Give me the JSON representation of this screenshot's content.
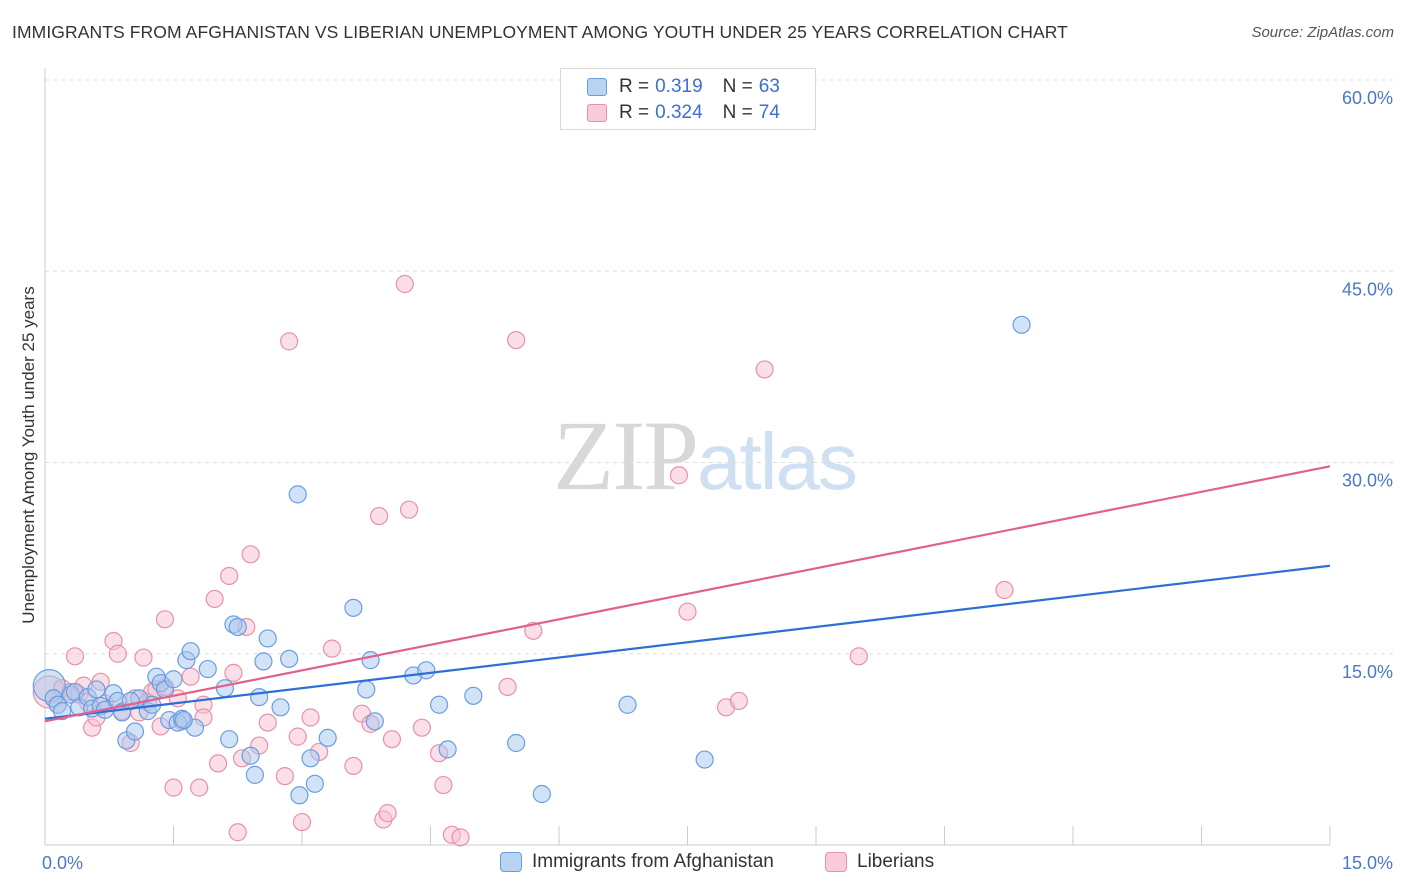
{
  "header": {
    "title": "IMMIGRANTS FROM AFGHANISTAN VS LIBERIAN UNEMPLOYMENT AMONG YOUTH UNDER 25 YEARS CORRELATION CHART",
    "source": "Source: ZipAtlas.com"
  },
  "watermark": {
    "zip": "ZIP",
    "atlas": "atlas"
  },
  "legend": {
    "blue": {
      "r_label": "R =",
      "r_value": "0.319",
      "n_label": "N =",
      "n_value": "63"
    },
    "pink": {
      "r_label": "R =",
      "r_value": "0.324",
      "n_label": "N =",
      "n_value": "74"
    }
  },
  "bottom_legend": {
    "blue_label": "Immigrants from Afghanistan",
    "pink_label": "Liberians"
  },
  "colors": {
    "blue_fill": "#a8c8f0",
    "blue_stroke": "#6a9de0",
    "blue_line": "#2e6fd6",
    "pink_fill": "#f6bfd0",
    "pink_stroke": "#e890ad",
    "pink_line": "#e0628c",
    "tick_text": "#4a78c8",
    "grid": "#dddddd"
  },
  "chart_data": {
    "type": "scatter",
    "title": "IMMIGRANTS FROM AFGHANISTAN VS LIBERIAN UNEMPLOYMENT AMONG YOUTH UNDER 25 YEARS CORRELATION CHART",
    "xlabel": "",
    "ylabel": "Unemployment Among Youth under 25 years",
    "xlim": [
      0,
      15
    ],
    "ylim": [
      0,
      60
    ],
    "x_tick_labels": [
      "0.0%",
      "15.0%"
    ],
    "y_ticks": [
      15,
      30,
      45,
      60
    ],
    "y_tick_labels": [
      "15.0%",
      "30.0%",
      "45.0%",
      "60.0%"
    ],
    "series": [
      {
        "name": "Immigrants from Afghanistan",
        "color": "blue",
        "trend": {
          "x": [
            0,
            15
          ],
          "y": [
            9.9,
            21.9
          ]
        },
        "points": [
          [
            0.05,
            12.5
          ],
          [
            0.1,
            11.5
          ],
          [
            0.15,
            11.0
          ],
          [
            0.2,
            10.5
          ],
          [
            0.3,
            11.8
          ],
          [
            0.35,
            12.0
          ],
          [
            0.4,
            10.8
          ],
          [
            0.5,
            11.6
          ],
          [
            0.55,
            10.7
          ],
          [
            0.6,
            12.2
          ],
          [
            0.65,
            10.9
          ],
          [
            0.7,
            10.6
          ],
          [
            0.8,
            11.9
          ],
          [
            0.85,
            11.3
          ],
          [
            0.9,
            10.4
          ],
          [
            0.95,
            8.2
          ],
          [
            1.05,
            8.9
          ],
          [
            1.1,
            11.5
          ],
          [
            1.2,
            10.5
          ],
          [
            1.25,
            11.0
          ],
          [
            1.3,
            13.2
          ],
          [
            1.35,
            12.7
          ],
          [
            1.4,
            12.2
          ],
          [
            1.45,
            9.8
          ],
          [
            1.5,
            13.0
          ],
          [
            1.55,
            9.6
          ],
          [
            1.6,
            9.9
          ],
          [
            1.65,
            14.5
          ],
          [
            1.7,
            15.2
          ],
          [
            1.75,
            9.2
          ],
          [
            1.9,
            13.8
          ],
          [
            2.1,
            12.3
          ],
          [
            2.15,
            8.3
          ],
          [
            2.2,
            17.3
          ],
          [
            2.25,
            17.1
          ],
          [
            2.4,
            7.0
          ],
          [
            2.45,
            5.5
          ],
          [
            2.5,
            11.6
          ],
          [
            2.55,
            14.4
          ],
          [
            2.6,
            16.2
          ],
          [
            2.75,
            10.8
          ],
          [
            2.85,
            14.6
          ],
          [
            2.95,
            27.5
          ],
          [
            2.97,
            3.9
          ],
          [
            3.1,
            6.8
          ],
          [
            3.15,
            4.8
          ],
          [
            3.3,
            8.4
          ],
          [
            3.6,
            18.6
          ],
          [
            3.75,
            12.2
          ],
          [
            3.8,
            14.5
          ],
          [
            3.85,
            9.7
          ],
          [
            4.3,
            13.3
          ],
          [
            4.45,
            13.7
          ],
          [
            4.6,
            11.0
          ],
          [
            4.7,
            7.5
          ],
          [
            5.0,
            11.7
          ],
          [
            5.5,
            8.0
          ],
          [
            5.8,
            4.0
          ],
          [
            6.8,
            11.0
          ],
          [
            7.7,
            6.7
          ],
          [
            11.4,
            40.8
          ],
          [
            1.62,
            9.8
          ],
          [
            1.0,
            11.3
          ]
        ]
      },
      {
        "name": "Liberians",
        "color": "pink",
        "trend": {
          "x": [
            0,
            15
          ],
          "y": [
            9.7,
            29.7
          ]
        },
        "points": [
          [
            0.05,
            12.0
          ],
          [
            0.1,
            11.5
          ],
          [
            0.2,
            12.3
          ],
          [
            0.3,
            12.0
          ],
          [
            0.35,
            14.8
          ],
          [
            0.4,
            11.8
          ],
          [
            0.45,
            12.5
          ],
          [
            0.5,
            11.2
          ],
          [
            0.55,
            9.2
          ],
          [
            0.6,
            10.0
          ],
          [
            0.65,
            12.8
          ],
          [
            0.7,
            11.1
          ],
          [
            0.8,
            16.0
          ],
          [
            0.85,
            15.0
          ],
          [
            0.9,
            10.5
          ],
          [
            1.0,
            8.0
          ],
          [
            1.05,
            11.5
          ],
          [
            1.1,
            10.4
          ],
          [
            1.15,
            14.7
          ],
          [
            1.2,
            11.2
          ],
          [
            1.25,
            12.0
          ],
          [
            1.3,
            12.2
          ],
          [
            1.35,
            9.3
          ],
          [
            1.4,
            12.4
          ],
          [
            1.4,
            17.7
          ],
          [
            1.5,
            4.5
          ],
          [
            1.55,
            11.5
          ],
          [
            1.6,
            9.7
          ],
          [
            1.7,
            13.2
          ],
          [
            1.8,
            4.5
          ],
          [
            1.85,
            11.0
          ],
          [
            1.85,
            10.0
          ],
          [
            1.98,
            19.3
          ],
          [
            2.02,
            6.4
          ],
          [
            2.15,
            21.1
          ],
          [
            2.2,
            13.5
          ],
          [
            2.25,
            1.0
          ],
          [
            2.3,
            6.8
          ],
          [
            2.35,
            17.1
          ],
          [
            2.4,
            22.8
          ],
          [
            2.5,
            7.8
          ],
          [
            2.6,
            9.6
          ],
          [
            2.8,
            5.4
          ],
          [
            2.85,
            39.5
          ],
          [
            2.95,
            8.5
          ],
          [
            3.0,
            1.8
          ],
          [
            3.1,
            10.0
          ],
          [
            3.2,
            7.3
          ],
          [
            3.35,
            15.4
          ],
          [
            3.6,
            6.2
          ],
          [
            3.7,
            10.3
          ],
          [
            3.8,
            9.5
          ],
          [
            3.9,
            25.8
          ],
          [
            3.95,
            2.0
          ],
          [
            4.0,
            2.5
          ],
          [
            4.05,
            8.3
          ],
          [
            4.2,
            44.0
          ],
          [
            4.25,
            26.3
          ],
          [
            4.4,
            9.2
          ],
          [
            4.6,
            7.2
          ],
          [
            4.65,
            4.7
          ],
          [
            4.75,
            0.8
          ],
          [
            4.85,
            0.6
          ],
          [
            5.4,
            12.4
          ],
          [
            5.5,
            39.6
          ],
          [
            5.7,
            16.8
          ],
          [
            7.4,
            29.0
          ],
          [
            7.5,
            18.3
          ],
          [
            7.95,
            10.8
          ],
          [
            8.1,
            11.3
          ],
          [
            8.4,
            37.3
          ],
          [
            9.5,
            14.8
          ],
          [
            11.2,
            20.0
          ],
          [
            0.15,
            11.0
          ]
        ]
      }
    ]
  }
}
